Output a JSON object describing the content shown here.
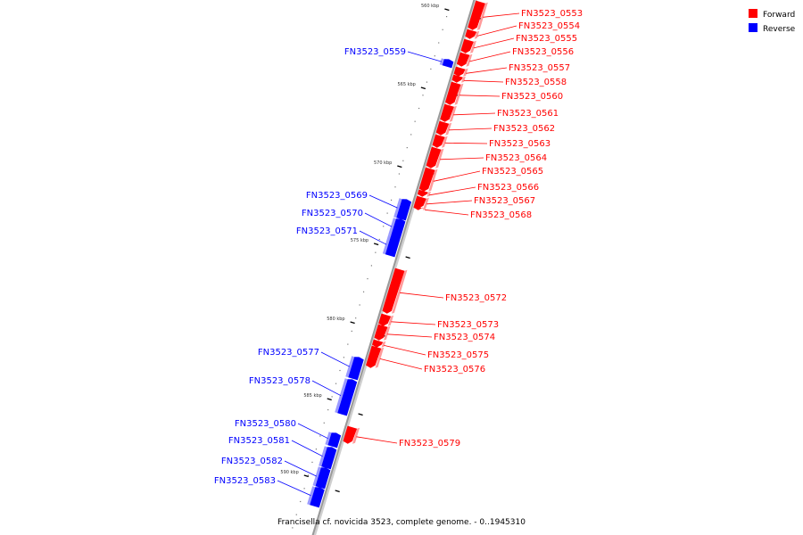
{
  "caption": "Francisella cf. novicida 3523, complete genome. - 0..1945310",
  "legend": [
    {
      "label": "Forward",
      "color": "#ff0000"
    },
    {
      "label": "Reverse",
      "color": "#0000ff"
    }
  ],
  "colors": {
    "forward": "#ff0000",
    "reverse": "#0000ff",
    "backbone": "#999999"
  },
  "ticks": [
    {
      "label": "560 kbp"
    },
    {
      "label": "565 kbp"
    },
    {
      "label": "570 kbp"
    },
    {
      "label": "575 kbp"
    },
    {
      "label": "580 kbp"
    },
    {
      "label": "585 kbp"
    },
    {
      "label": "590 kbp"
    }
  ],
  "genes": [
    {
      "id": "FN3523_0553",
      "strand": "forward"
    },
    {
      "id": "FN3523_0554",
      "strand": "forward"
    },
    {
      "id": "FN3523_0555",
      "strand": "forward"
    },
    {
      "id": "FN3523_0556",
      "strand": "forward"
    },
    {
      "id": "FN3523_0557",
      "strand": "forward"
    },
    {
      "id": "FN3523_0558",
      "strand": "forward"
    },
    {
      "id": "FN3523_0559",
      "strand": "reverse"
    },
    {
      "id": "FN3523_0560",
      "strand": "forward"
    },
    {
      "id": "FN3523_0561",
      "strand": "forward"
    },
    {
      "id": "FN3523_0562",
      "strand": "forward"
    },
    {
      "id": "FN3523_0563",
      "strand": "forward"
    },
    {
      "id": "FN3523_0564",
      "strand": "forward"
    },
    {
      "id": "FN3523_0565",
      "strand": "forward"
    },
    {
      "id": "FN3523_0566",
      "strand": "forward"
    },
    {
      "id": "FN3523_0567",
      "strand": "forward"
    },
    {
      "id": "FN3523_0568",
      "strand": "forward"
    },
    {
      "id": "FN3523_0569",
      "strand": "reverse"
    },
    {
      "id": "FN3523_0570",
      "strand": "reverse"
    },
    {
      "id": "FN3523_0571",
      "strand": "reverse"
    },
    {
      "id": "FN3523_0572",
      "strand": "forward"
    },
    {
      "id": "FN3523_0573",
      "strand": "forward"
    },
    {
      "id": "FN3523_0574",
      "strand": "forward"
    },
    {
      "id": "FN3523_0575",
      "strand": "forward"
    },
    {
      "id": "FN3523_0576",
      "strand": "forward"
    },
    {
      "id": "FN3523_0577",
      "strand": "reverse"
    },
    {
      "id": "FN3523_0578",
      "strand": "reverse"
    },
    {
      "id": "FN3523_0579",
      "strand": "forward"
    },
    {
      "id": "FN3523_0580",
      "strand": "reverse"
    },
    {
      "id": "FN3523_0581",
      "strand": "reverse"
    },
    {
      "id": "FN3523_0582",
      "strand": "reverse"
    },
    {
      "id": "FN3523_0583",
      "strand": "reverse"
    }
  ]
}
